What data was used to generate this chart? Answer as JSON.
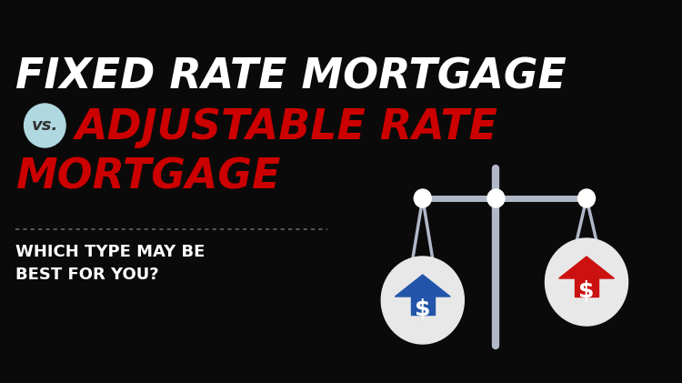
{
  "bg_color": "#0a0a0a",
  "title_line1": "FIXED RATE MORTGAGE",
  "vs_text": "vs.",
  "title_line2": "ADJUSTABLE RATE",
  "title_line3": "MORTGAGE",
  "subtitle": "WHICH TYPE MAY BE\nBEST FOR YOU?",
  "title_color": "#ffffff",
  "vs_bg_color": "#b0d8e0",
  "vs_text_color": "#333333",
  "red_color": "#cc0000",
  "scale_color": "#b0b8c8",
  "ball_color": "#e8e8e8",
  "blue_house_color": "#2255aa",
  "red_house_color": "#cc1111",
  "dollar_color": "#ffffff",
  "dashes_color": "#555555"
}
